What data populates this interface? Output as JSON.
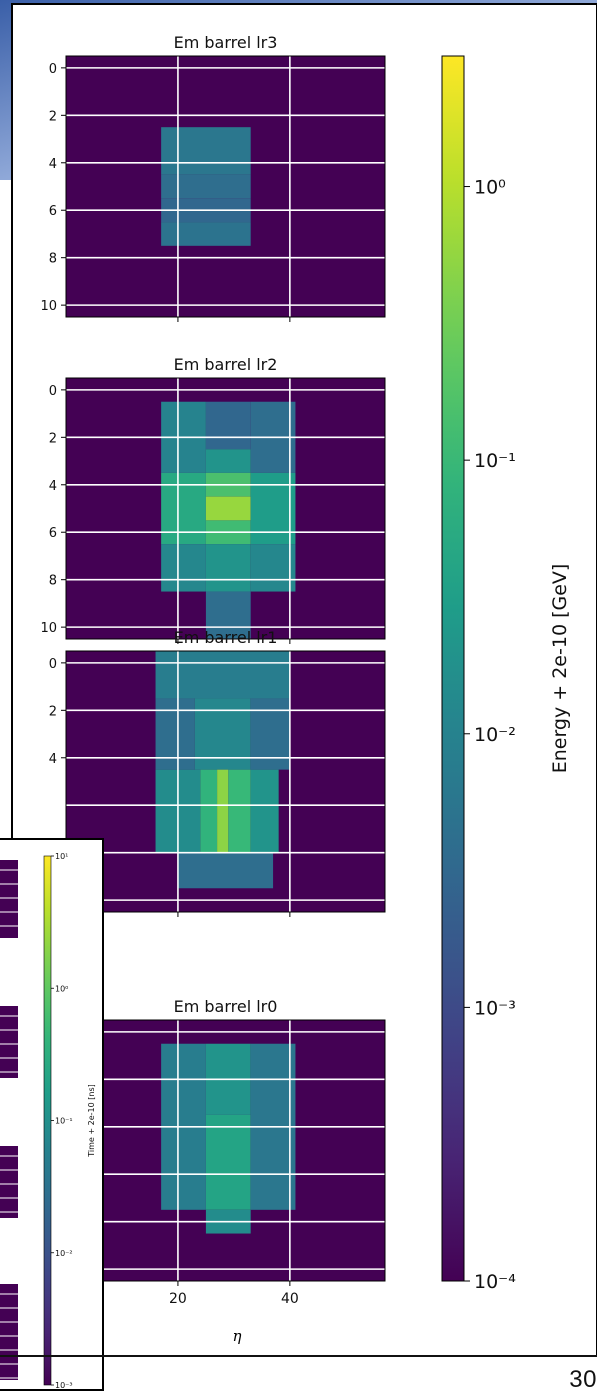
{
  "chart_data": {
    "type": "heatmap",
    "panels": [
      {
        "title": "Em barrel lr3",
        "yticks": [
          0,
          2,
          4,
          6,
          8,
          10
        ],
        "cells": [
          [
            17,
            33,
            3,
            5,
            0.006
          ],
          [
            17,
            33,
            5,
            6,
            0.004
          ],
          [
            17,
            33,
            6,
            7,
            0.003
          ],
          [
            17,
            33,
            7,
            8,
            0.005
          ]
        ]
      },
      {
        "title": "Em barrel lr2",
        "yticks": [
          0,
          2,
          4,
          6,
          8,
          10
        ],
        "cells": [
          [
            17,
            25,
            1,
            4,
            0.01
          ],
          [
            25,
            33,
            1,
            3,
            0.003
          ],
          [
            33,
            41,
            1,
            4,
            0.004
          ],
          [
            17,
            25,
            4,
            7,
            0.05
          ],
          [
            25,
            33,
            3,
            4,
            0.02
          ],
          [
            25,
            33,
            4,
            5,
            0.15
          ],
          [
            25,
            33,
            5,
            6,
            0.6
          ],
          [
            25,
            33,
            6,
            7,
            0.12
          ],
          [
            33,
            41,
            4,
            7,
            0.03
          ],
          [
            17,
            25,
            7,
            9,
            0.012
          ],
          [
            25,
            33,
            7,
            9,
            0.02
          ],
          [
            33,
            41,
            7,
            9,
            0.012
          ],
          [
            25,
            33,
            9,
            11,
            0.004
          ]
        ]
      },
      {
        "title": "Em barrel lr1",
        "yticks": [
          0,
          2,
          4
        ],
        "cells": [
          [
            16,
            40,
            0,
            2,
            0.008
          ],
          [
            16,
            23,
            2,
            5,
            0.004
          ],
          [
            23,
            33,
            2,
            5,
            0.012
          ],
          [
            33,
            40,
            2,
            5,
            0.004
          ],
          [
            16,
            24,
            5,
            8.5,
            0.015
          ],
          [
            24,
            27,
            5,
            8.5,
            0.08
          ],
          [
            27,
            29,
            5,
            8.5,
            0.5
          ],
          [
            29,
            33,
            5,
            8.5,
            0.1
          ],
          [
            33,
            38,
            5,
            8.5,
            0.02
          ],
          [
            20,
            37,
            8.5,
            10,
            0.004
          ]
        ]
      },
      {
        "title": "Em barrel lr0",
        "yticks": [],
        "cells": [
          [
            17,
            25,
            1,
            8,
            0.008
          ],
          [
            25,
            33,
            1,
            4,
            0.02
          ],
          [
            25,
            33,
            4,
            8,
            0.04
          ],
          [
            33,
            41,
            1,
            8,
            0.006
          ],
          [
            25,
            33,
            8,
            9,
            0.015
          ]
        ]
      }
    ],
    "xlabel": "η",
    "xticks": [
      20,
      40
    ],
    "colorbar": {
      "label": "Energy + 2e-10 [GeV]",
      "scale": "log",
      "range": [
        0.0001,
        3
      ],
      "ticks": [
        "10⁰",
        "10⁻¹",
        "10⁻²",
        "10⁻³",
        "10⁻⁴"
      ],
      "tick_values": [
        1,
        0.1,
        0.01,
        0.001,
        0.0001
      ]
    },
    "inset_colorbar": {
      "label": "Time + 2e-10 [ns]",
      "scale": "log",
      "range": [
        0.001,
        10
      ],
      "ticks": [
        "10¹",
        "10⁰",
        "10⁻¹",
        "10⁻²",
        "10⁻³"
      ],
      "tick_values": [
        10,
        1,
        0.1,
        0.01,
        0.001
      ]
    }
  },
  "colors": {
    "background_cell": "#440154",
    "grid": "#ffffff"
  },
  "page_number": "30"
}
